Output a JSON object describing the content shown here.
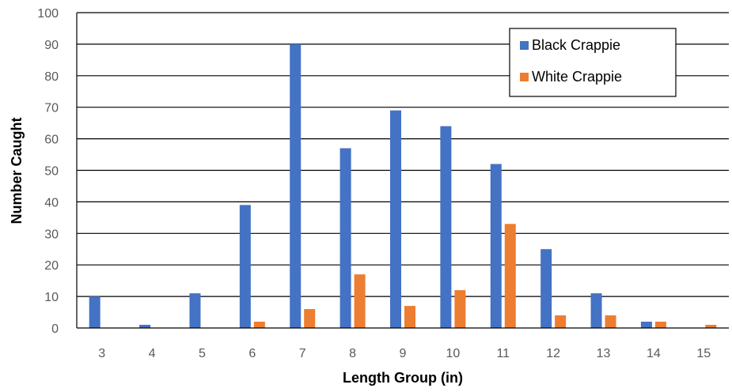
{
  "chart_data": {
    "type": "bar",
    "title": "",
    "xlabel": "Length Group (in)",
    "ylabel": "Number Caught",
    "categories": [
      "3",
      "4",
      "5",
      "6",
      "7",
      "8",
      "9",
      "10",
      "11",
      "12",
      "13",
      "14",
      "15"
    ],
    "series": [
      {
        "name": "Black Crappie",
        "color": "#4472C4",
        "values": [
          10,
          1,
          11,
          39,
          90,
          57,
          69,
          64,
          52,
          25,
          11,
          2,
          0
        ]
      },
      {
        "name": "White Crappie",
        "color": "#ED7D31",
        "values": [
          0,
          0,
          0,
          2,
          6,
          17,
          7,
          12,
          33,
          4,
          4,
          2,
          1
        ]
      }
    ],
    "ylim": [
      0,
      100
    ],
    "yticks": [
      0,
      10,
      20,
      30,
      40,
      50,
      60,
      70,
      80,
      90,
      100
    ],
    "grid": true,
    "legend_position": "top-right"
  }
}
